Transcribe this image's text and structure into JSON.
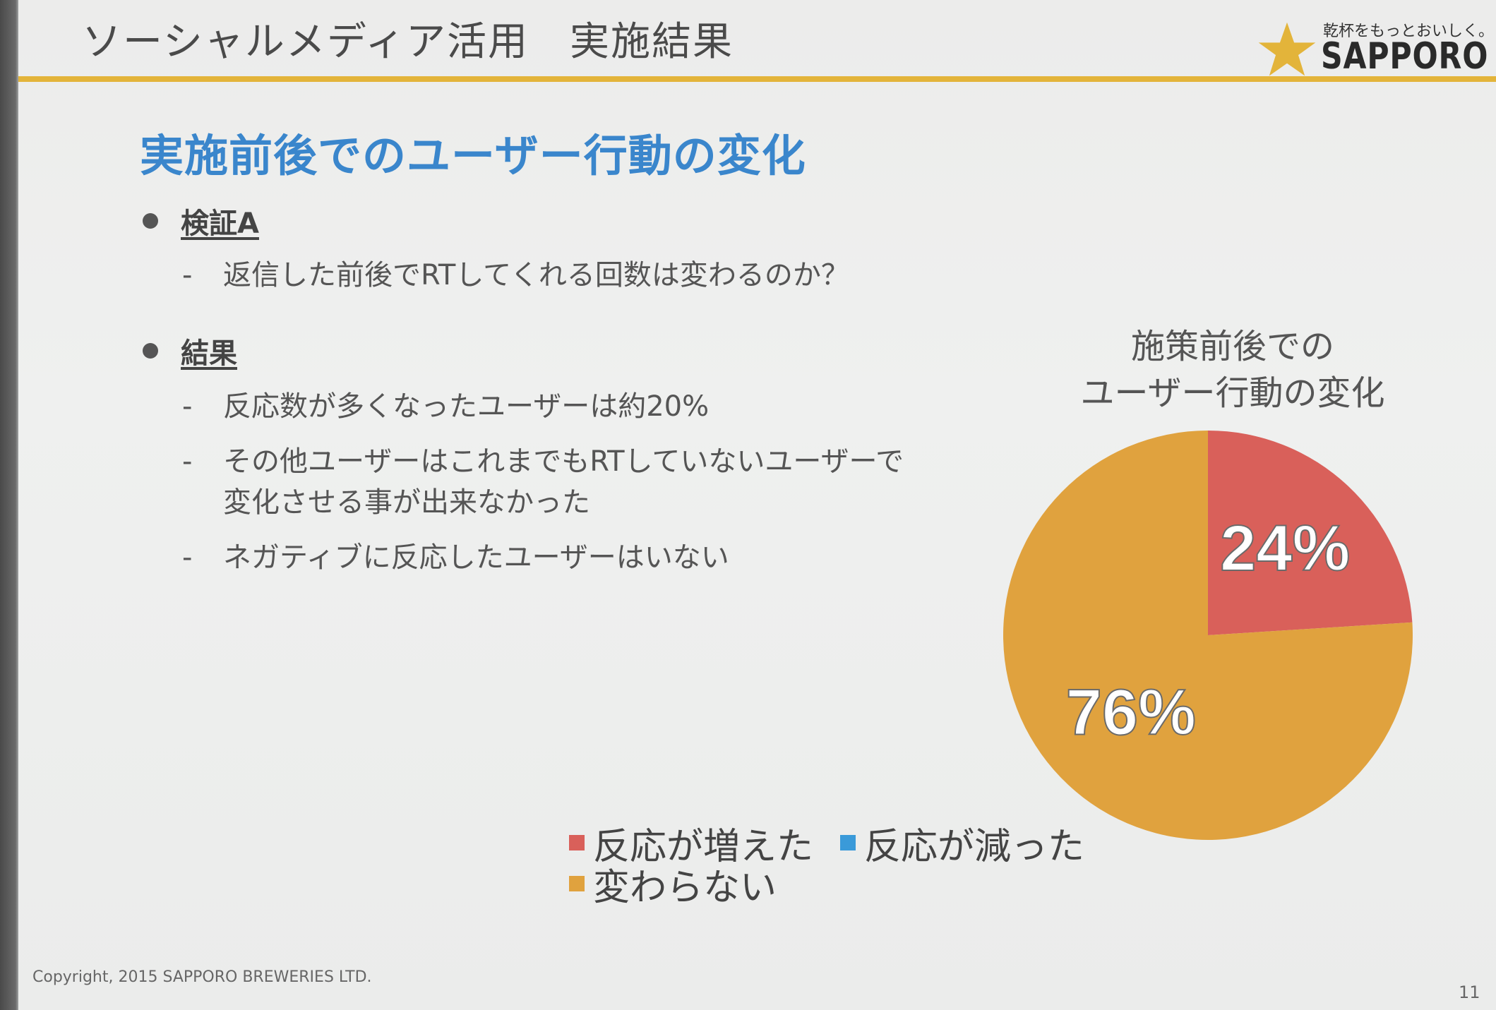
{
  "header": {
    "title": "ソーシャルメディア活用　実施結果",
    "logo_tagline": "乾杯をもっとおいしく。",
    "logo_text": "SAPPORO",
    "accent_color": "#e3b43a"
  },
  "section_heading": "実施前後でのユーザー行動の変化",
  "bullets": [
    {
      "label": "検証A",
      "items": [
        "返信した前後でRTしてくれる回数は変わるのか？"
      ]
    },
    {
      "label": "結果",
      "items": [
        "反応数が多くなったユーザーは約20%",
        "その他ユーザーはこれまでもRTしていないユーザーで",
        "変化させる事が出来なかった",
        "ネガティブに反応したユーザーはいない"
      ]
    }
  ],
  "dash": "-",
  "chart_data": {
    "type": "pie",
    "title_lines": [
      "施策前後での",
      "ユーザー行動の変化"
    ],
    "slices": [
      {
        "name": "反応が増えた",
        "value": 24,
        "label": "24%",
        "color": "#d9605a"
      },
      {
        "name": "反応が減った",
        "value": 0,
        "label": "",
        "color": "#3a9ad9"
      },
      {
        "name": "変わらない",
        "value": 76,
        "label": "76%",
        "color": "#e0a23e"
      }
    ],
    "legend": [
      "反応が増えた",
      "反応が減った",
      "変わらない"
    ]
  },
  "footer": {
    "copyright": "Copyright, 2015 SAPPORO BREWERIES LTD.",
    "page_number": "11"
  }
}
